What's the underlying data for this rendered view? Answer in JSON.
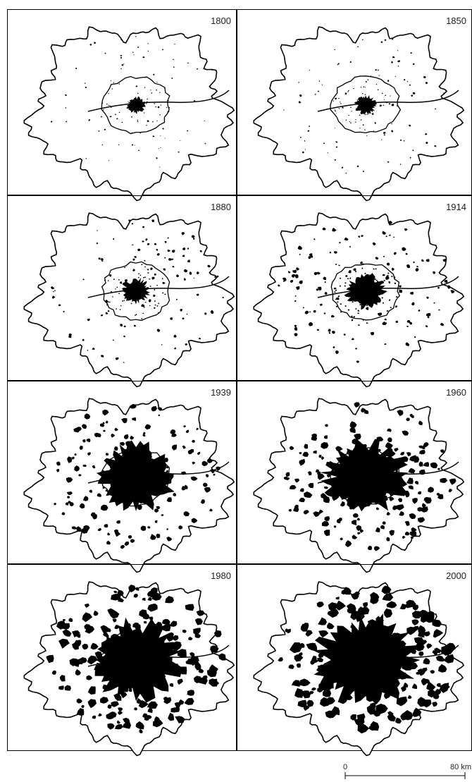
{
  "panels": [
    {
      "year": "1800"
    },
    {
      "year": "1850"
    },
    {
      "year": "1880"
    },
    {
      "year": "1914"
    },
    {
      "year": "1939"
    },
    {
      "year": "1960"
    },
    {
      "year": "1980"
    },
    {
      "year": "2000"
    }
  ],
  "scale": {
    "start": "0",
    "end": "80 km"
  }
}
